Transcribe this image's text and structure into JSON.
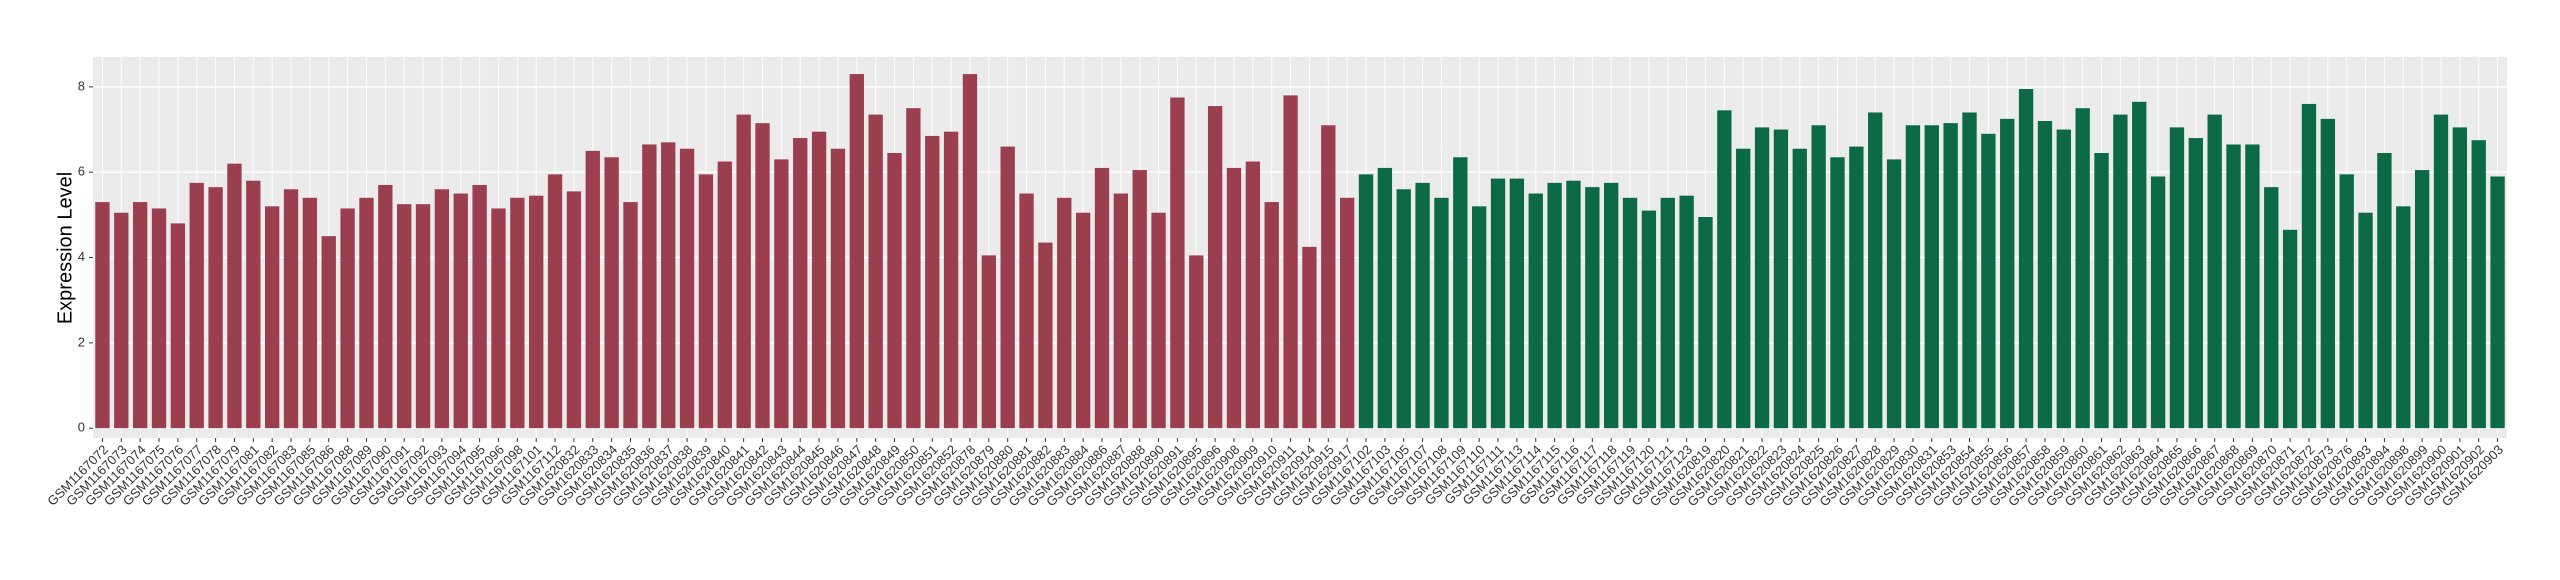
{
  "chart_data": {
    "type": "bar",
    "y_label": "Expression Level",
    "categories": [
      "GSM1167072",
      "GSM1167073",
      "GSM1167074",
      "GSM1167075",
      "GSM1167076",
      "GSM1167077",
      "GSM1167078",
      "GSM1167079",
      "GSM1167081",
      "GSM1167082",
      "GSM1167083",
      "GSM1167085",
      "GSM1167086",
      "GSM1167088",
      "GSM1167089",
      "GSM1167090",
      "GSM1167091",
      "GSM1167092",
      "GSM1167093",
      "GSM1167094",
      "GSM1167095",
      "GSM1167096",
      "GSM1167098",
      "GSM1167101",
      "GSM1167112",
      "GSM1620832",
      "GSM1620833",
      "GSM1620834",
      "GSM1620835",
      "GSM1620836",
      "GSM1620837",
      "GSM1620838",
      "GSM1620839",
      "GSM1620840",
      "GSM1620841",
      "GSM1620842",
      "GSM1620843",
      "GSM1620844",
      "GSM1620845",
      "GSM1620846",
      "GSM1620847",
      "GSM1620848",
      "GSM1620849",
      "GSM1620850",
      "GSM1620851",
      "GSM1620852",
      "GSM1620878",
      "GSM1620879",
      "GSM1620880",
      "GSM1620881",
      "GSM1620882",
      "GSM1620883",
      "GSM1620884",
      "GSM1620886",
      "GSM1620887",
      "GSM1620888",
      "GSM1620890",
      "GSM1620891",
      "GSM1620895",
      "GSM1620896",
      "GSM1620908",
      "GSM1620909",
      "GSM1620910",
      "GSM1620911",
      "GSM1620914",
      "GSM1620915",
      "GSM1620917",
      "GSM1167102",
      "GSM1167103",
      "GSM1167105",
      "GSM1167107",
      "GSM1167108",
      "GSM1167109",
      "GSM1167110",
      "GSM1167111",
      "GSM1167113",
      "GSM1167114",
      "GSM1167115",
      "GSM1167116",
      "GSM1167117",
      "GSM1167118",
      "GSM1167119",
      "GSM1167120",
      "GSM1167121",
      "GSM1167123",
      "GSM1620819",
      "GSM1620820",
      "GSM1620821",
      "GSM1620822",
      "GSM1620823",
      "GSM1620824",
      "GSM1620825",
      "GSM1620826",
      "GSM1620827",
      "GSM1620828",
      "GSM1620829",
      "GSM1620830",
      "GSM1620831",
      "GSM1620853",
      "GSM1620854",
      "GSM1620855",
      "GSM1620856",
      "GSM1620857",
      "GSM1620858",
      "GSM1620859",
      "GSM1620860",
      "GSM1620861",
      "GSM1620862",
      "GSM1620863",
      "GSM1620864",
      "GSM1620865",
      "GSM1620866",
      "GSM1620867",
      "GSM1620868",
      "GSM1620869",
      "GSM1620870",
      "GSM1620871",
      "GSM1620872",
      "GSM1620873",
      "GSM1620876",
      "GSM1620893",
      "GSM1620894",
      "GSM1620898",
      "GSM1620899",
      "GSM1620900",
      "GSM1620901",
      "GSM1620902",
      "GSM1620903"
    ],
    "values": [
      5.3,
      5.05,
      5.3,
      5.15,
      4.8,
      5.75,
      5.65,
      6.2,
      5.8,
      5.2,
      5.6,
      5.4,
      4.5,
      5.15,
      5.4,
      5.7,
      5.25,
      5.25,
      5.6,
      5.5,
      5.7,
      5.15,
      5.4,
      5.45,
      5.95,
      5.55,
      6.5,
      6.35,
      5.3,
      6.65,
      6.7,
      6.55,
      5.95,
      6.25,
      7.35,
      7.15,
      6.3,
      6.8,
      6.95,
      6.55,
      8.3,
      7.35,
      6.45,
      7.5,
      6.85,
      6.95,
      8.3,
      4.05,
      6.6,
      5.5,
      4.35,
      5.4,
      5.05,
      6.1,
      5.5,
      6.05,
      5.05,
      7.75,
      4.05,
      7.55,
      6.1,
      6.25,
      5.3,
      7.8,
      4.25,
      7.1,
      5.4,
      5.95,
      6.1,
      5.6,
      5.75,
      5.4,
      6.35,
      5.2,
      5.85,
      5.85,
      5.5,
      5.75,
      5.8,
      5.65,
      5.75,
      5.4,
      5.1,
      5.4,
      5.45,
      4.95,
      7.45,
      6.55,
      7.05,
      7.0,
      6.55,
      7.1,
      6.35,
      6.6,
      7.4,
      6.3,
      7.1,
      7.1,
      7.15,
      7.4,
      6.9,
      7.25,
      7.95,
      7.2,
      7.0,
      7.5,
      6.45,
      7.35,
      7.65,
      5.9,
      7.05,
      6.8,
      7.35,
      6.65,
      6.65,
      5.65,
      4.65,
      7.6,
      7.25,
      5.95,
      5.05,
      6.45,
      5.2,
      6.05,
      7.35,
      7.05,
      6.75,
      5.9
    ],
    "colors": [
      "#9b3f4f",
      "#9b3f4f",
      "#9b3f4f",
      "#9b3f4f",
      "#9b3f4f",
      "#9b3f4f",
      "#9b3f4f",
      "#9b3f4f",
      "#9b3f4f",
      "#9b3f4f",
      "#9b3f4f",
      "#9b3f4f",
      "#9b3f4f",
      "#9b3f4f",
      "#9b3f4f",
      "#9b3f4f",
      "#9b3f4f",
      "#9b3f4f",
      "#9b3f4f",
      "#9b3f4f",
      "#9b3f4f",
      "#9b3f4f",
      "#9b3f4f",
      "#9b3f4f",
      "#9b3f4f",
      "#9b3f4f",
      "#9b3f4f",
      "#9b3f4f",
      "#9b3f4f",
      "#9b3f4f",
      "#9b3f4f",
      "#9b3f4f",
      "#9b3f4f",
      "#9b3f4f",
      "#9b3f4f",
      "#9b3f4f",
      "#9b3f4f",
      "#9b3f4f",
      "#9b3f4f",
      "#9b3f4f",
      "#9b3f4f",
      "#9b3f4f",
      "#9b3f4f",
      "#9b3f4f",
      "#9b3f4f",
      "#9b3f4f",
      "#9b3f4f",
      "#9b3f4f",
      "#9b3f4f",
      "#9b3f4f",
      "#9b3f4f",
      "#9b3f4f",
      "#9b3f4f",
      "#9b3f4f",
      "#9b3f4f",
      "#9b3f4f",
      "#9b3f4f",
      "#9b3f4f",
      "#9b3f4f",
      "#9b3f4f",
      "#9b3f4f",
      "#9b3f4f",
      "#9b3f4f",
      "#9b3f4f",
      "#9b3f4f",
      "#9b3f4f",
      "#9b3f4f",
      "#0b6a45",
      "#0b6a45",
      "#0b6a45",
      "#0b6a45",
      "#0b6a45",
      "#0b6a45",
      "#0b6a45",
      "#0b6a45",
      "#0b6a45",
      "#0b6a45",
      "#0b6a45",
      "#0b6a45",
      "#0b6a45",
      "#0b6a45",
      "#0b6a45",
      "#0b6a45",
      "#0b6a45",
      "#0b6a45",
      "#0b6a45",
      "#0b6a45",
      "#0b6a45",
      "#0b6a45",
      "#0b6a45",
      "#0b6a45",
      "#0b6a45",
      "#0b6a45",
      "#0b6a45",
      "#0b6a45",
      "#0b6a45",
      "#0b6a45",
      "#0b6a45",
      "#0b6a45",
      "#0b6a45",
      "#0b6a45",
      "#0b6a45",
      "#0b6a45",
      "#0b6a45",
      "#0b6a45",
      "#0b6a45",
      "#0b6a45",
      "#0b6a45",
      "#0b6a45",
      "#0b6a45",
      "#0b6a45",
      "#0b6a45",
      "#0b6a45",
      "#0b6a45",
      "#0b6a45",
      "#0b6a45",
      "#0b6a45",
      "#0b6a45",
      "#0b6a45",
      "#0b6a45",
      "#0b6a45",
      "#0b6a45",
      "#0b6a45",
      "#0b6a45",
      "#0b6a45",
      "#0b6a45",
      "#0b6a45",
      "#0b6a45"
    ],
    "ylim": [
      -0.23,
      8.7
    ],
    "yticks": [
      0,
      2,
      4,
      6,
      8
    ],
    "grid": true
  }
}
